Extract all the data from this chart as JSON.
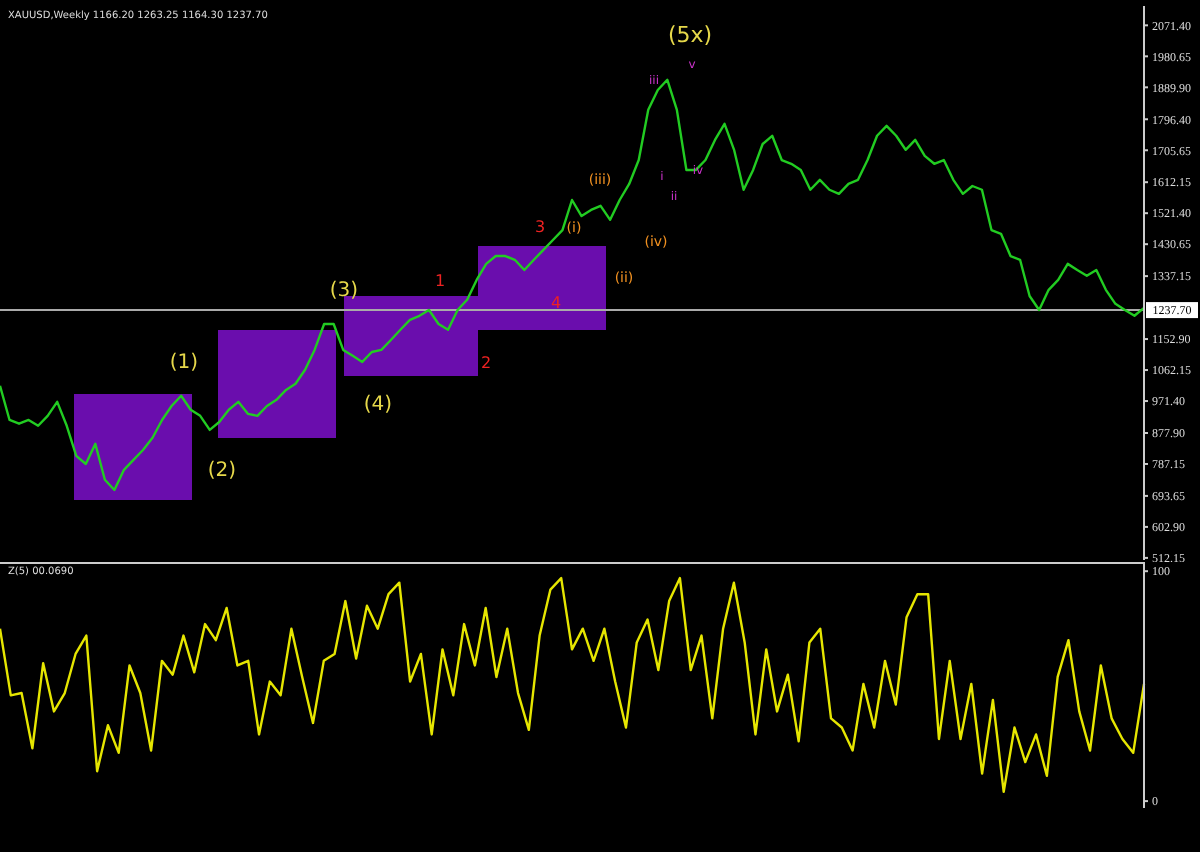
{
  "chart_data": [
    {
      "type": "line",
      "title": "XAUUSD,Weekly 1166.20 1263.25 1164.30 1237.70",
      "categories": [
        null,
        null,
        null,
        null,
        null,
        null,
        null,
        null,
        null,
        null,
        null,
        null,
        null,
        null,
        null,
        null,
        null,
        null,
        null,
        null,
        null,
        null,
        null,
        null,
        null,
        null,
        null,
        null,
        null,
        null,
        null,
        null,
        null,
        null,
        null,
        null,
        null,
        null,
        null,
        null,
        null,
        null,
        null,
        null,
        null,
        null,
        null,
        null,
        null,
        null,
        null,
        null,
        null,
        null,
        null,
        null,
        null,
        null,
        null,
        null,
        null,
        null,
        null,
        null,
        null,
        null,
        null,
        null,
        null,
        null,
        null,
        null,
        null,
        null,
        null,
        null,
        null,
        null,
        null,
        null,
        null,
        null,
        null,
        null,
        null,
        null,
        null,
        null,
        null,
        null,
        null,
        null,
        null,
        null,
        null,
        null,
        null,
        null,
        null,
        null,
        null,
        null,
        null,
        null,
        null,
        null,
        null,
        null,
        null,
        null,
        null,
        null,
        null,
        null,
        null,
        null,
        null,
        null,
        null,
        null,
        null
      ],
      "values": [
        1016,
        916,
        905,
        916,
        899,
        928,
        969,
        899,
        811,
        787,
        846,
        741,
        711,
        770,
        799,
        828,
        864,
        916,
        957,
        987,
        946,
        928,
        887,
        910,
        946,
        969,
        934,
        928,
        957,
        975,
        1004,
        1022,
        1063,
        1121,
        1197,
        1197,
        1121,
        1104,
        1086,
        1115,
        1121,
        1150,
        1180,
        1209,
        1221,
        1238,
        1197,
        1180,
        1238,
        1268,
        1326,
        1373,
        1396,
        1396,
        1385,
        1355,
        1385,
        1414,
        1443,
        1472,
        1560,
        1513,
        1531,
        1543,
        1502,
        1560,
        1607,
        1677,
        1824,
        1882,
        1912,
        1824,
        1648,
        1648,
        1677,
        1736,
        1783,
        1707,
        1590,
        1648,
        1724,
        1748,
        1677,
        1666,
        1648,
        1590,
        1619,
        1590,
        1578,
        1607,
        1619,
        1677,
        1748,
        1777,
        1748,
        1707,
        1736,
        1689,
        1666,
        1677,
        1619,
        1578,
        1601,
        1590,
        1472,
        1461,
        1396,
        1385,
        1279,
        1238,
        1297,
        1326,
        1373,
        1355,
        1338,
        1355,
        1297,
        1256,
        1238,
        1221,
        1244
      ],
      "color": "#22cc22",
      "ylim": [
        506,
        2128
      ],
      "yticks": [
        {
          "value": 2071.4,
          "label": "2071.40"
        },
        {
          "value": 1980.65,
          "label": "1980.65"
        },
        {
          "value": 1889.9,
          "label": "1889.90"
        },
        {
          "value": 1796.4,
          "label": "1796.40"
        },
        {
          "value": 1705.65,
          "label": "1705.65"
        },
        {
          "value": 1612.15,
          "label": "1612.15"
        },
        {
          "value": 1521.4,
          "label": "1521.40"
        },
        {
          "value": 1430.65,
          "label": "1430.65"
        },
        {
          "value": 1337.15,
          "label": "1337.15"
        },
        {
          "value": 1152.9,
          "label": "1152.90"
        },
        {
          "value": 1062.15,
          "label": "1062.15"
        },
        {
          "value": 971.4,
          "label": "971.40"
        },
        {
          "value": 877.9,
          "label": "877.90"
        },
        {
          "value": 787.15,
          "label": "787.15"
        },
        {
          "value": 693.65,
          "label": "693.65"
        },
        {
          "value": 602.9,
          "label": "602.90"
        },
        {
          "value": 512.15,
          "label": "512.15"
        }
      ],
      "ref_lines": [
        {
          "axis": "y",
          "value": 1237.7,
          "label": "1237.70",
          "color": "#aaaaaa"
        }
      ],
      "annotations": [
        "(1)",
        "(2)",
        "(3)",
        "(4)",
        "(5x)",
        "1",
        "2",
        "3",
        "4",
        "(i)",
        "(ii)",
        "(iii)",
        "(iv)",
        "i",
        "ii",
        "iii",
        "iv",
        "v"
      ],
      "tick_labels": "y"
    },
    {
      "type": "line",
      "title": "Z(5) 00.0690",
      "categories": [
        null,
        null,
        null,
        null,
        null,
        null,
        null,
        null,
        null,
        null,
        null,
        null,
        null,
        null,
        null,
        null,
        null,
        null,
        null,
        null,
        null,
        null,
        null,
        null,
        null,
        null,
        null,
        null,
        null,
        null,
        null,
        null,
        null,
        null,
        null,
        null,
        null,
        null,
        null,
        null,
        null,
        null,
        null,
        null,
        null,
        null,
        null,
        null,
        null,
        null,
        null,
        null,
        null,
        null,
        null,
        null,
        null,
        null,
        null,
        null,
        null,
        null,
        null,
        null,
        null,
        null,
        null,
        null,
        null,
        null,
        null,
        null,
        null,
        null,
        null,
        null,
        null,
        null,
        null,
        null,
        null,
        null,
        null,
        null,
        null,
        null,
        null,
        null,
        null,
        null,
        null,
        null,
        null,
        null,
        null,
        null,
        null,
        null,
        null,
        null,
        null,
        null,
        null,
        null,
        null,
        null,
        null
      ],
      "values": [
        75,
        46,
        47,
        23,
        60,
        39,
        47,
        64,
        72,
        13,
        33,
        21,
        59,
        47,
        22,
        61,
        55,
        72,
        56,
        77,
        70,
        84,
        59,
        61,
        29,
        52,
        46,
        75,
        54,
        34,
        61,
        64,
        87,
        62,
        85,
        75,
        90,
        95,
        52,
        64,
        29,
        66,
        46,
        77,
        59,
        84,
        54,
        75,
        47,
        31,
        72,
        92,
        97,
        66,
        75,
        61,
        75,
        52,
        32,
        69,
        79,
        57,
        87,
        97,
        57,
        72,
        36,
        75,
        95,
        69,
        29,
        66,
        39,
        55,
        26,
        69,
        75,
        36,
        32,
        22,
        51,
        32,
        61,
        42,
        80,
        90,
        90,
        27,
        61,
        27,
        51,
        12,
        44,
        4,
        32,
        17,
        29,
        11,
        54,
        70,
        39,
        22,
        59,
        36,
        27,
        21,
        51
      ],
      "color": "#e6e600",
      "ylim": [
        -3,
        104
      ],
      "yticks": [
        100,
        0
      ],
      "tick_labels": "y"
    }
  ]
}
